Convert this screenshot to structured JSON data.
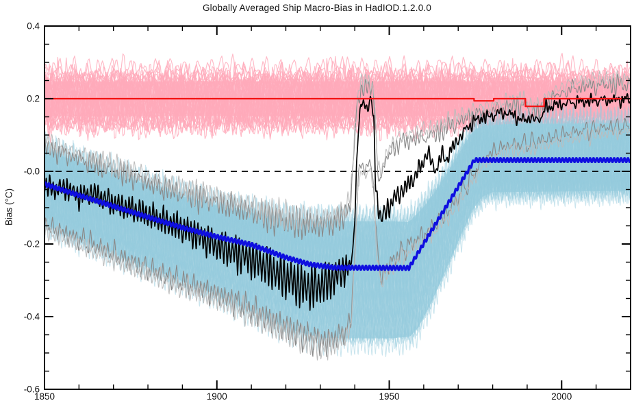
{
  "page": {
    "background": "#ffffff"
  },
  "chart": {
    "title": "Globally Averaged Ship Macro-Bias in HadIOD.1.2.0.0",
    "ylabel": "Bias (°C)",
    "x_axis": {
      "min": 1850,
      "max": 2020,
      "major_ticks": [
        1850,
        1900,
        1950,
        2000
      ],
      "tick_labels": [
        "1850",
        "1900",
        "1950",
        "2000"
      ],
      "minor_step": 10
    },
    "y_axis": {
      "min": -0.6,
      "max": 0.4,
      "major_ticks": [
        0.4,
        0.2,
        0.0,
        -0.2,
        -0.4,
        -0.6
      ],
      "tick_labels": [
        "0.4",
        "0.2",
        "-0.0",
        "-0.2",
        "-0.4",
        "-0.6"
      ],
      "minor_step": 0.05
    }
  },
  "chart_data": {
    "type": "line",
    "title": "Globally Averaged Ship Macro-Bias in HadIOD.1.2.0.0",
    "xlabel": "",
    "ylabel": "Bias (°C)",
    "x_range": [
      1850,
      2020
    ],
    "y_range": [
      -0.6,
      0.4
    ],
    "grid": false,
    "legend": "none",
    "zero_line": {
      "y": 0.0,
      "style": "dashed",
      "color": "#000000"
    },
    "series": [
      {
        "name": "red-reference-bias",
        "color": "#f41212",
        "width": 2.2,
        "style": "solid-steps",
        "knots": [
          [
            1850,
            0.2
          ],
          [
            1974.6,
            0.2
          ],
          [
            1974.6,
            0.194
          ],
          [
            1980.3,
            0.194
          ],
          [
            1980.3,
            0.2
          ],
          [
            1989.5,
            0.2
          ],
          [
            1989.5,
            0.179
          ],
          [
            1994.9,
            0.179
          ],
          [
            1994.9,
            0.2
          ],
          [
            2020,
            0.2
          ]
        ]
      },
      {
        "name": "blue-ensemble-median-bias",
        "color": "#0f0fe0",
        "width": 3.4,
        "style": "solid-seasonal",
        "knots": [
          [
            1850,
            -0.035
          ],
          [
            1860,
            -0.066
          ],
          [
            1870,
            -0.096
          ],
          [
            1880,
            -0.126
          ],
          [
            1890,
            -0.155
          ],
          [
            1900,
            -0.18
          ],
          [
            1910,
            -0.202
          ],
          [
            1920,
            -0.237
          ],
          [
            1927,
            -0.256
          ],
          [
            1934,
            -0.265
          ],
          [
            1955.7,
            -0.266
          ],
          [
            1974.7,
            0.031
          ],
          [
            2020,
            0.031
          ]
        ]
      },
      {
        "name": "black-best-estimate-bias",
        "color": "#000000",
        "width": 1.7,
        "style": "solid-seasonal",
        "knots": [
          [
            1850,
            -0.038
          ],
          [
            1853,
            -0.05
          ],
          [
            1856,
            -0.045
          ],
          [
            1860,
            -0.068
          ],
          [
            1864,
            -0.06
          ],
          [
            1868,
            -0.08
          ],
          [
            1872,
            -0.095
          ],
          [
            1876,
            -0.105
          ],
          [
            1880,
            -0.12
          ],
          [
            1884,
            -0.135
          ],
          [
            1888,
            -0.15
          ],
          [
            1892,
            -0.165
          ],
          [
            1896,
            -0.185
          ],
          [
            1900,
            -0.205
          ],
          [
            1904,
            -0.22
          ],
          [
            1908,
            -0.235
          ],
          [
            1912,
            -0.25
          ],
          [
            1915,
            -0.265
          ],
          [
            1918,
            -0.285
          ],
          [
            1921,
            -0.295
          ],
          [
            1924,
            -0.315
          ],
          [
            1927,
            -0.32
          ],
          [
            1930,
            -0.315
          ],
          [
            1933,
            -0.3
          ],
          [
            1935,
            -0.285
          ],
          [
            1937,
            -0.27
          ],
          [
            1938.5,
            -0.265
          ],
          [
            1939.5,
            -0.22
          ],
          [
            1940.3,
            -0.05
          ],
          [
            1941,
            0.12
          ],
          [
            1941.8,
            0.175
          ],
          [
            1942.6,
            0.19
          ],
          [
            1943.4,
            0.18
          ],
          [
            1944.2,
            0.185
          ],
          [
            1945,
            0.192
          ],
          [
            1945.5,
            0.13
          ],
          [
            1946,
            -0.02
          ],
          [
            1946.8,
            -0.105
          ],
          [
            1947.6,
            -0.128
          ],
          [
            1948.6,
            -0.118
          ],
          [
            1950,
            -0.095
          ],
          [
            1951.5,
            -0.075
          ],
          [
            1953,
            -0.06
          ],
          [
            1955,
            -0.042
          ],
          [
            1957,
            -0.02
          ],
          [
            1959,
            0.01
          ],
          [
            1960.5,
            0.042
          ],
          [
            1961.5,
            0.048
          ],
          [
            1962.5,
            0.018
          ],
          [
            1963.5,
            0.002
          ],
          [
            1964.5,
            0.03
          ],
          [
            1965.5,
            0.046
          ],
          [
            1966.5,
            0.032
          ],
          [
            1967.5,
            0.05
          ],
          [
            1969,
            0.075
          ],
          [
            1971,
            0.1
          ],
          [
            1973,
            0.125
          ],
          [
            1975,
            0.14
          ],
          [
            1977,
            0.148
          ],
          [
            1979,
            0.15
          ],
          [
            1981,
            0.158
          ],
          [
            1983,
            0.162
          ],
          [
            1985,
            0.158
          ],
          [
            1987,
            0.15
          ],
          [
            1988.5,
            0.138
          ],
          [
            1990,
            0.148
          ],
          [
            1992,
            0.142
          ],
          [
            1994,
            0.147
          ],
          [
            1995.2,
            0.172
          ],
          [
            1996.5,
            0.178
          ],
          [
            1998,
            0.182
          ],
          [
            2000,
            0.185
          ],
          [
            2003,
            0.19
          ],
          [
            2006,
            0.192
          ],
          [
            2010,
            0.195
          ],
          [
            2014,
            0.196
          ],
          [
            2020,
            0.198
          ]
        ],
        "seasonal_amplitude_knots": [
          [
            1850,
            0.022
          ],
          [
            1880,
            0.03
          ],
          [
            1900,
            0.038
          ],
          [
            1912,
            0.048
          ],
          [
            1925,
            0.055
          ],
          [
            1933,
            0.05
          ],
          [
            1938,
            0.03
          ],
          [
            1941,
            0.012
          ],
          [
            1944,
            0.012
          ],
          [
            1947,
            0.022
          ],
          [
            1952,
            0.022
          ],
          [
            1958,
            0.016
          ],
          [
            1963,
            0.013
          ],
          [
            1970,
            0.01
          ],
          [
            1980,
            0.006
          ],
          [
            1995,
            0.004
          ],
          [
            2020,
            0.0035
          ]
        ]
      },
      {
        "name": "gray-uncertainty-upper",
        "color": "#8a8a8a",
        "color2": "#bcbcbc",
        "width": 1.15,
        "style": "noisy",
        "knots": [
          [
            1850,
            0.068
          ],
          [
            1858,
            0.04
          ],
          [
            1866,
            0.015
          ],
          [
            1874,
            -0.01
          ],
          [
            1882,
            -0.04
          ],
          [
            1890,
            -0.062
          ],
          [
            1898,
            -0.082
          ],
          [
            1906,
            -0.1
          ],
          [
            1914,
            -0.125
          ],
          [
            1922,
            -0.143
          ],
          [
            1930,
            -0.15
          ],
          [
            1934,
            -0.14
          ],
          [
            1937,
            -0.125
          ],
          [
            1938.8,
            -0.08
          ],
          [
            1939.8,
            0.06
          ],
          [
            1940.8,
            0.19
          ],
          [
            1941.8,
            0.225
          ],
          [
            1943,
            0.232
          ],
          [
            1944.6,
            0.235
          ],
          [
            1945.6,
            0.19
          ],
          [
            1946.4,
            0.04
          ],
          [
            1947.2,
            -0.02
          ],
          [
            1948.5,
            0.01
          ],
          [
            1950,
            0.05
          ],
          [
            1952,
            0.072
          ],
          [
            1955,
            0.085
          ],
          [
            1959,
            0.092
          ],
          [
            1963,
            0.1
          ],
          [
            1967,
            0.12
          ],
          [
            1971,
            0.14
          ],
          [
            1975,
            0.155
          ],
          [
            1979,
            0.165
          ],
          [
            1983,
            0.175
          ],
          [
            1987,
            0.183
          ],
          [
            1989.5,
            0.185
          ],
          [
            1990.5,
            0.163
          ],
          [
            1994.5,
            0.168
          ],
          [
            1995.5,
            0.19
          ],
          [
            1998,
            0.205
          ],
          [
            2001,
            0.22
          ],
          [
            2004,
            0.23
          ],
          [
            2008,
            0.235
          ],
          [
            2013,
            0.238
          ],
          [
            2020,
            0.24
          ]
        ]
      },
      {
        "name": "gray-uncertainty-lower",
        "color": "#8a8a8a",
        "color2": "#bcbcbc",
        "width": 1.15,
        "style": "noisy",
        "knots": [
          [
            1850,
            -0.148
          ],
          [
            1858,
            -0.178
          ],
          [
            1866,
            -0.21
          ],
          [
            1874,
            -0.245
          ],
          [
            1882,
            -0.275
          ],
          [
            1890,
            -0.305
          ],
          [
            1898,
            -0.33
          ],
          [
            1906,
            -0.36
          ],
          [
            1912,
            -0.39
          ],
          [
            1918,
            -0.42
          ],
          [
            1924,
            -0.445
          ],
          [
            1929,
            -0.465
          ],
          [
            1932,
            -0.47
          ],
          [
            1935,
            -0.455
          ],
          [
            1937.5,
            -0.44
          ],
          [
            1939,
            -0.4
          ],
          [
            1940,
            -0.22
          ],
          [
            1941,
            -0.02
          ],
          [
            1942,
            0.02
          ],
          [
            1943.5,
            0.01
          ],
          [
            1944.8,
            0.015
          ],
          [
            1945.6,
            -0.05
          ],
          [
            1946.5,
            -0.22
          ],
          [
            1947.5,
            -0.29
          ],
          [
            1949,
            -0.27
          ],
          [
            1951,
            -0.245
          ],
          [
            1953,
            -0.225
          ],
          [
            1955,
            -0.21
          ],
          [
            1957,
            -0.195
          ],
          [
            1959,
            -0.18
          ],
          [
            1962,
            -0.16
          ],
          [
            1965,
            -0.13
          ],
          [
            1968,
            -0.1
          ],
          [
            1971,
            -0.055
          ],
          [
            1974,
            -0.015
          ],
          [
            1977,
            0.03
          ],
          [
            1980,
            0.055
          ],
          [
            1984,
            0.07
          ],
          [
            1988,
            0.075
          ],
          [
            1992,
            0.08
          ],
          [
            1996,
            0.09
          ],
          [
            2000,
            0.1
          ],
          [
            2005,
            0.11
          ],
          [
            2012,
            0.12
          ],
          [
            2020,
            0.125
          ]
        ]
      }
    ],
    "bands": [
      {
        "name": "pink-ensemble-band",
        "center": 0.2,
        "half_width": 0.072,
        "core_range": [
          0.152,
          0.248
        ],
        "core_color": "#ffbcca",
        "line_color": "rgba(255,170,186,0.8)",
        "n_members": 38
      },
      {
        "name": "lightblue-ensemble-band",
        "core_color": "#aed7e4",
        "line_color": "rgba(150,203,222,0.5)",
        "n_members": 52,
        "upper_knots": [
          [
            1850,
            0.065
          ],
          [
            1860,
            0.032
          ],
          [
            1870,
            0.0
          ],
          [
            1880,
            -0.032
          ],
          [
            1890,
            -0.062
          ],
          [
            1900,
            -0.088
          ],
          [
            1910,
            -0.108
          ],
          [
            1920,
            -0.125
          ],
          [
            1930,
            -0.128
          ],
          [
            1940,
            -0.128
          ],
          [
            1950,
            -0.128
          ],
          [
            1955.7,
            -0.13
          ],
          [
            1960,
            -0.09
          ],
          [
            1964,
            -0.04
          ],
          [
            1968,
            0.02
          ],
          [
            1972,
            0.085
          ],
          [
            1974.7,
            0.12
          ],
          [
            1977,
            0.132
          ],
          [
            1985,
            0.138
          ],
          [
            2020,
            0.14
          ]
        ],
        "lower_knots": [
          [
            1850,
            -0.152
          ],
          [
            1860,
            -0.192
          ],
          [
            1870,
            -0.232
          ],
          [
            1880,
            -0.272
          ],
          [
            1890,
            -0.31
          ],
          [
            1900,
            -0.348
          ],
          [
            1908,
            -0.385
          ],
          [
            1916,
            -0.425
          ],
          [
            1923,
            -0.45
          ],
          [
            1930,
            -0.468
          ],
          [
            1940,
            -0.47
          ],
          [
            1950,
            -0.47
          ],
          [
            1956,
            -0.465
          ],
          [
            1958.5,
            -0.44
          ],
          [
            1962,
            -0.375
          ],
          [
            1966,
            -0.29
          ],
          [
            1970,
            -0.2
          ],
          [
            1974,
            -0.115
          ],
          [
            1977,
            -0.075
          ],
          [
            1980,
            -0.062
          ],
          [
            2020,
            -0.058
          ]
        ]
      }
    ]
  }
}
